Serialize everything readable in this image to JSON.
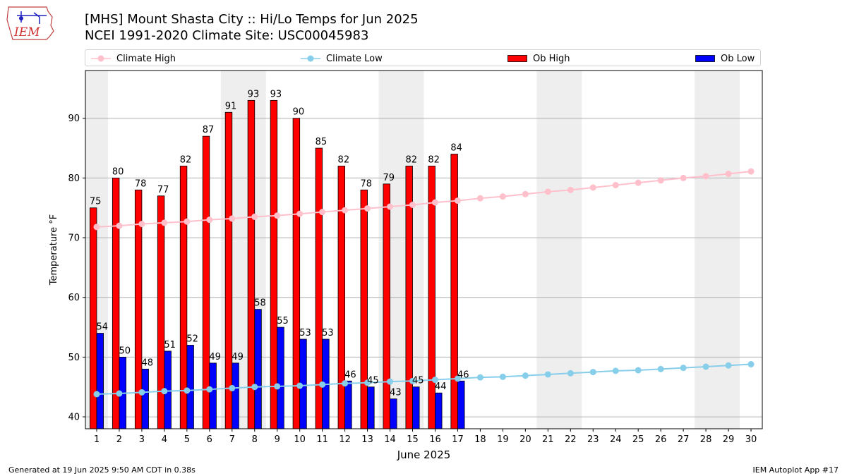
{
  "header": {
    "logo_text": "IEM",
    "title_line1": "[MHS] Mount Shasta City :: Hi/Lo Temps for Jun 2025",
    "title_line2": "NCEI 1991-2020 Climate Site: USC00045983"
  },
  "legend": {
    "climate_high": "Climate High",
    "climate_low": "Climate Low",
    "ob_high": "Ob High",
    "ob_low": "Ob Low"
  },
  "footer": {
    "generated": "Generated at 19 Jun 2025 9:50 AM CDT in 0.38s",
    "app": "IEM Autoplot App #17"
  },
  "colors": {
    "ob_high": "#ff0000",
    "ob_low": "#0000ff",
    "climate_high": "#ffc0cb",
    "climate_low": "#87ceeb",
    "weekend_band": "#eeeeee",
    "grid": "#b0b0b0"
  },
  "chart_data": {
    "type": "bar",
    "xlabel": "June 2025",
    "ylabel": "Temperature °F",
    "ylim": [
      38,
      98
    ],
    "xlim": [
      0.5,
      30.5
    ],
    "yticks": [
      40,
      50,
      60,
      70,
      80,
      90
    ],
    "grid": "horizontal",
    "legend_position": "top",
    "days": [
      1,
      2,
      3,
      4,
      5,
      6,
      7,
      8,
      9,
      10,
      11,
      12,
      13,
      14,
      15,
      16,
      17,
      18,
      19,
      20,
      21,
      22,
      23,
      24,
      25,
      26,
      27,
      28,
      29,
      30
    ],
    "weekend_bands": [
      [
        1,
        1
      ],
      [
        7,
        8
      ],
      [
        14,
        15
      ],
      [
        21,
        22
      ],
      [
        28,
        29
      ]
    ],
    "series": [
      {
        "name": "Ob High",
        "kind": "bar",
        "values": [
          75,
          80,
          78,
          77,
          82,
          87,
          91,
          93,
          93,
          90,
          85,
          82,
          78,
          79,
          82,
          82,
          84
        ]
      },
      {
        "name": "Ob Low",
        "kind": "bar",
        "values": [
          54,
          50,
          48,
          51,
          52,
          49,
          49,
          58,
          55,
          53,
          53,
          46,
          45,
          43,
          45,
          44,
          46
        ]
      },
      {
        "name": "Climate High",
        "kind": "line",
        "values": [
          71.8,
          72.0,
          72.3,
          72.5,
          72.7,
          73.0,
          73.2,
          73.5,
          73.7,
          74.0,
          74.3,
          74.6,
          74.9,
          75.2,
          75.5,
          75.9,
          76.2,
          76.6,
          76.9,
          77.3,
          77.7,
          78.0,
          78.4,
          78.8,
          79.2,
          79.6,
          80.0,
          80.3,
          80.7,
          81.1
        ]
      },
      {
        "name": "Climate Low",
        "kind": "line",
        "values": [
          43.8,
          43.9,
          44.1,
          44.3,
          44.4,
          44.6,
          44.8,
          45.0,
          45.1,
          45.2,
          45.4,
          45.6,
          45.7,
          45.9,
          46.0,
          46.2,
          46.4,
          46.6,
          46.7,
          46.9,
          47.1,
          47.3,
          47.5,
          47.7,
          47.8,
          48.0,
          48.2,
          48.4,
          48.6,
          48.8
        ]
      }
    ]
  }
}
